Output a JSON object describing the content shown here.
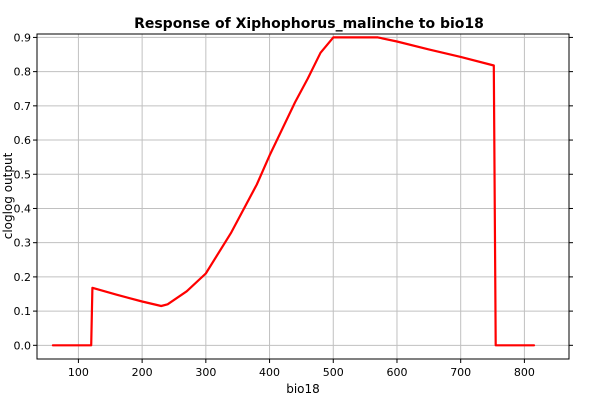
{
  "chart_data": {
    "type": "line",
    "title": "Response of Xiphophorus_malinche to bio18",
    "xlabel": "bio18",
    "ylabel": "cloglog output",
    "xlim": [
      35,
      870
    ],
    "ylim": [
      -0.04,
      0.91
    ],
    "xticks": [
      100,
      200,
      300,
      400,
      500,
      600,
      700,
      800
    ],
    "xtick_labels": [
      "100",
      "200",
      "300",
      "400",
      "500",
      "600",
      "700",
      "800"
    ],
    "yticks": [
      0.0,
      0.1,
      0.2,
      0.3,
      0.4,
      0.5,
      0.6,
      0.7,
      0.8,
      0.9
    ],
    "ytick_labels": [
      "0.0",
      "0.1",
      "0.2",
      "0.3",
      "0.4",
      "0.5",
      "0.6",
      "0.7",
      "0.8",
      "0.9"
    ],
    "grid": true,
    "legend": "none",
    "series": [
      {
        "color": "#ff0000",
        "x": [
          60,
          120,
          122,
          160,
          200,
          230,
          240,
          270,
          300,
          340,
          380,
          400,
          440,
          460,
          480,
          500,
          540,
          570,
          600,
          650,
          700,
          752,
          755,
          815
        ],
        "y": [
          0.0,
          0.0,
          0.168,
          0.148,
          0.128,
          0.115,
          0.12,
          0.158,
          0.21,
          0.33,
          0.47,
          0.555,
          0.71,
          0.78,
          0.855,
          0.9,
          0.9,
          0.9,
          0.888,
          0.865,
          0.843,
          0.818,
          0.0,
          0.0
        ]
      }
    ]
  }
}
